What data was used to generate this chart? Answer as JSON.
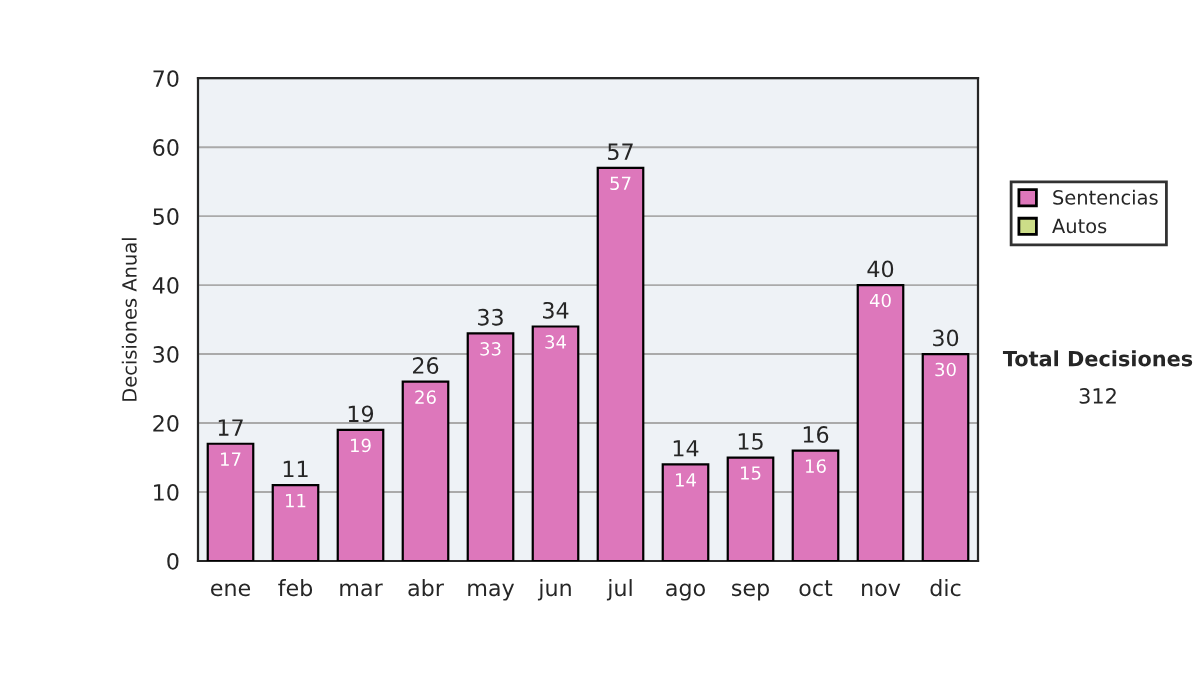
{
  "chart_data": {
    "type": "bar",
    "ylabel": "Decisiones Anual",
    "categories": [
      "ene",
      "feb",
      "mar",
      "abr",
      "may",
      "jun",
      "jul",
      "ago",
      "sep",
      "oct",
      "nov",
      "dic"
    ],
    "series": [
      {
        "name": "Sentencias",
        "color": "#dd77bb",
        "values": [
          17,
          11,
          19,
          26,
          33,
          34,
          57,
          14,
          15,
          16,
          40,
          30
        ],
        "value_labels": [
          "17",
          "11",
          "19",
          "26",
          "33",
          "34",
          "57",
          "14",
          "15",
          "16",
          "40",
          "30"
        ]
      },
      {
        "name": "Autos",
        "color": "#ccdd88",
        "values": [
          null,
          null,
          null,
          null,
          null,
          null,
          null,
          null,
          null,
          null,
          null,
          null
        ]
      }
    ],
    "stacked": true,
    "totals": [
      "17",
      "11",
      "19",
      "26",
      "33",
      "34",
      "57",
      "14",
      "15",
      "16",
      "40",
      "30"
    ],
    "ylim": [
      0,
      70
    ],
    "yticks": [
      0,
      10,
      20,
      30,
      40,
      50,
      60,
      70
    ],
    "grid": "y",
    "legend": "right",
    "annotations": [
      "Total Decisiones",
      "312"
    ]
  }
}
